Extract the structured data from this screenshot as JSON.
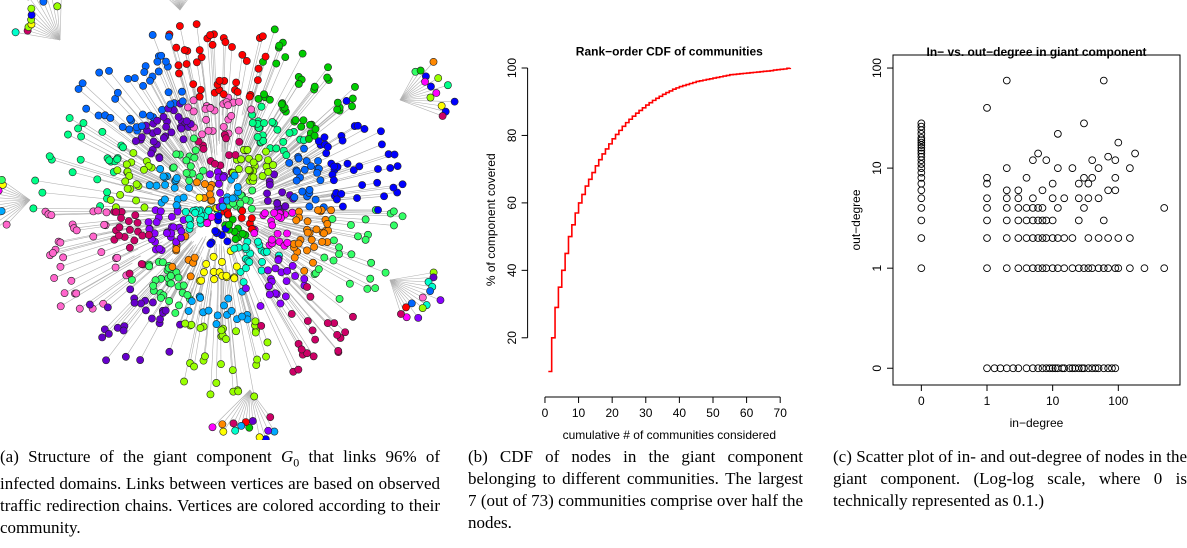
{
  "figure_a": {
    "caption": [
      "(a) Structure of the giant component ",
      "G",
      "0",
      " that links 96% of infected domains. Links between vertices are based on observed traffic redirection chains. Vertices are colored according to their community."
    ]
  },
  "chart_data": [
    {
      "type": "line",
      "title": "Rank−order CDF of communities",
      "x_label": "cumulative # of communities considered",
      "y_label": "% of component covered",
      "color": "#ff0000",
      "step": true,
      "x": [
        1,
        2,
        3,
        4,
        5,
        6,
        7,
        8,
        9,
        10,
        11,
        12,
        13,
        14,
        15,
        16,
        17,
        18,
        19,
        20,
        21,
        22,
        23,
        24,
        25,
        26,
        27,
        28,
        29,
        30,
        31,
        32,
        33,
        34,
        35,
        36,
        37,
        38,
        39,
        40,
        41,
        42,
        43,
        44,
        45,
        46,
        47,
        48,
        49,
        50,
        51,
        52,
        53,
        54,
        55,
        56,
        57,
        58,
        59,
        60,
        61,
        62,
        63,
        64,
        65,
        66,
        67,
        68,
        69,
        70,
        71,
        72,
        73
      ],
      "values": [
        10,
        20,
        29,
        35,
        40,
        45,
        50,
        53.5,
        57,
        60,
        62.5,
        65,
        67,
        69,
        71,
        72.8,
        74.5,
        76,
        77.5,
        79,
        80.3,
        81.5,
        82.7,
        83.8,
        84.8,
        85.7,
        86.6,
        87.4,
        88.2,
        89,
        89.7,
        90.4,
        91,
        91.6,
        92.2,
        92.7,
        93.2,
        93.7,
        94.1,
        94.5,
        94.8,
        95.1,
        95.4,
        95.7,
        96,
        96.2,
        96.4,
        96.6,
        96.8,
        97,
        97.2,
        97.4,
        97.6,
        97.8,
        98,
        98.1,
        98.2,
        98.3,
        98.4,
        98.5,
        98.6,
        98.7,
        98.8,
        98.9,
        99,
        99.1,
        99.2,
        99.4,
        99.5,
        99.6,
        99.7,
        99.9,
        100
      ],
      "xlim": [
        -1,
        75
      ],
      "ylim": [
        6,
        104
      ],
      "xticks": [
        0,
        10,
        20,
        30,
        40,
        50,
        60,
        70
      ],
      "yticks": [
        20,
        40,
        60,
        80,
        100
      ],
      "caption": "(b) CDF of nodes in the giant component belonging to different communities. The largest 7 (out of 73) communities comprise over half the nodes."
    },
    {
      "type": "scatter",
      "title": "In− vs. out−degree in giant component",
      "x_label": "in−degree",
      "y_label": "out−degree",
      "color": "#000000",
      "xlog": true,
      "ylog": true,
      "x": [
        0.1,
        0.1,
        0.1,
        0.1,
        0.1,
        0.1,
        0.1,
        0.1,
        0.1,
        0.1,
        0.1,
        0.1,
        0.1,
        0.1,
        0.1,
        0.1,
        0.1,
        0.1,
        0.1,
        0.1,
        0.1,
        0.1,
        0.1,
        0.1,
        1,
        1,
        1,
        1,
        1,
        1,
        1,
        1,
        1,
        2,
        2,
        2,
        2,
        2,
        2,
        2,
        2,
        2,
        3,
        3,
        3,
        3,
        3,
        3,
        3,
        4,
        4,
        4,
        4,
        4,
        4,
        5,
        5,
        5,
        5,
        5,
        5,
        5,
        6,
        6,
        6,
        6,
        6,
        6,
        7,
        7,
        7,
        7,
        7,
        7,
        8,
        8,
        8,
        8,
        8,
        10,
        10,
        10,
        10,
        10,
        10,
        12,
        12,
        12,
        12,
        12,
        12,
        15,
        15,
        15,
        15,
        20,
        20,
        20,
        20,
        25,
        25,
        25,
        25,
        25,
        30,
        30,
        30,
        30,
        30,
        35,
        35,
        35,
        35,
        35,
        40,
        40,
        40,
        40,
        50,
        50,
        50,
        50,
        50,
        60,
        60,
        60,
        60,
        70,
        70,
        70,
        70,
        70,
        90,
        90,
        90,
        90,
        90,
        100,
        100,
        100,
        150,
        150,
        150,
        180,
        250,
        500,
        500,
        1.3,
        1.6,
        2.5,
        9,
        11,
        14,
        18,
        22,
        28,
        45,
        80
      ],
      "values": [
        1,
        2,
        3,
        4,
        5,
        6,
        7,
        8,
        9,
        10,
        11,
        12,
        13,
        14,
        15,
        16,
        17,
        18,
        19,
        20,
        22,
        24,
        26,
        28,
        0.1,
        1,
        2,
        3,
        4,
        5,
        7,
        8,
        40,
        0.1,
        1,
        2,
        3,
        4,
        5,
        6,
        10,
        75,
        0.1,
        1,
        2,
        3,
        4,
        5,
        6,
        0.1,
        1,
        2,
        3,
        4,
        8,
        0.1,
        1,
        2,
        3,
        4,
        5,
        12,
        0.1,
        1,
        2,
        3,
        4,
        14,
        0.1,
        1,
        2,
        3,
        4,
        6,
        0.1,
        1,
        2,
        3,
        12,
        0.1,
        1,
        2,
        3,
        5,
        7,
        0.1,
        1,
        2,
        4,
        10,
        22,
        0.1,
        1,
        2,
        5,
        0.1,
        1,
        2,
        10,
        0.1,
        1,
        3,
        5,
        7,
        0.1,
        1,
        4,
        8,
        28,
        0.1,
        1,
        2,
        5,
        7,
        0.1,
        1,
        8,
        12,
        0.1,
        1,
        2,
        5,
        10,
        0.1,
        1,
        3,
        75,
        0.1,
        1,
        2,
        6,
        13,
        0.1,
        1,
        6,
        8,
        12,
        1,
        2,
        18,
        1,
        2,
        10,
        14,
        1,
        1,
        4,
        0.1,
        0.1,
        0.1,
        0.1,
        0.1,
        0.1,
        0.1,
        0.1,
        0.1,
        0.1,
        0.1
      ],
      "xlim": [
        0.037,
        870
      ],
      "ylim": [
        0.068,
        135
      ],
      "xticks": [
        {
          "value": 0.1,
          "label": "0"
        },
        1,
        10,
        100
      ],
      "yticks": [
        {
          "value": 0.1,
          "label": "0"
        },
        1,
        10,
        100
      ],
      "caption": "(c) Scatter plot of in- and out-degree of nodes in the giant component. (Log-log scale, where 0 is technically represented as 0.1.)"
    }
  ]
}
